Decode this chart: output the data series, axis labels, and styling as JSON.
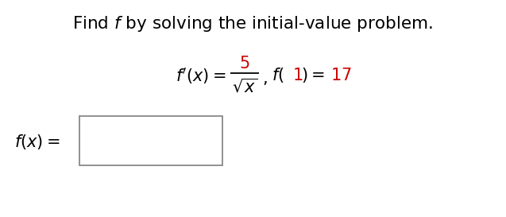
{
  "title": "Find $f$ by solving the initial-value problem.",
  "title_fontsize": 15.5,
  "title_color": "#000000",
  "eq_fontsize": 15,
  "red_color": "#cc0000",
  "black_color": "#000000",
  "gray_color": "#888888",
  "background_color": "#ffffff",
  "fig_width": 6.37,
  "fig_height": 2.73,
  "dpi": 100
}
